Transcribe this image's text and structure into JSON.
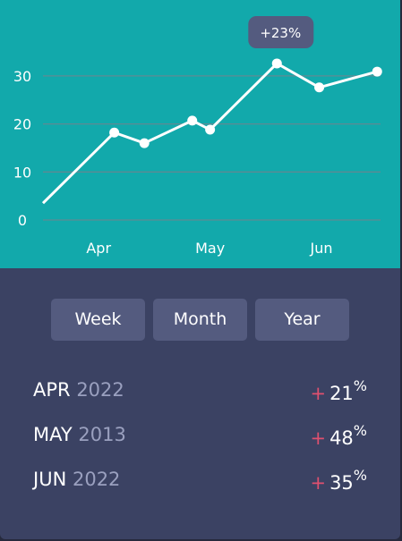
{
  "chart_data": {
    "type": "line",
    "annotation": "+23%",
    "x": [
      3.5,
      4.14,
      4.41,
      4.84,
      5.0,
      5.6,
      5.98,
      6.5
    ],
    "series": [
      {
        "color": "#ffffff",
        "values": [
          3.5,
          18.2,
          16,
          20.7,
          18.8,
          32.6,
          27.6,
          30.9
        ]
      }
    ],
    "xlim": [
      3.5,
      6.53
    ],
    "xticks": [
      {
        "value": 4,
        "label": "Apr"
      },
      {
        "value": 5,
        "label": "May"
      },
      {
        "value": 6,
        "label": "Jun"
      }
    ],
    "ylim": [
      0,
      35
    ],
    "yticks": [
      0,
      10,
      20,
      30
    ],
    "grid": true,
    "background": "#12a9ab"
  },
  "buttons": [
    "Week",
    "Month",
    "Year"
  ],
  "stats": [
    {
      "month": "APR",
      "year": "2022",
      "sign": "+",
      "value": "21",
      "unit": "%"
    },
    {
      "month": "MAY",
      "year": "2013",
      "sign": "+",
      "value": "48",
      "unit": "%"
    },
    {
      "month": "JUN",
      "year": "2022",
      "sign": "+",
      "value": "35",
      "unit": "%"
    }
  ]
}
